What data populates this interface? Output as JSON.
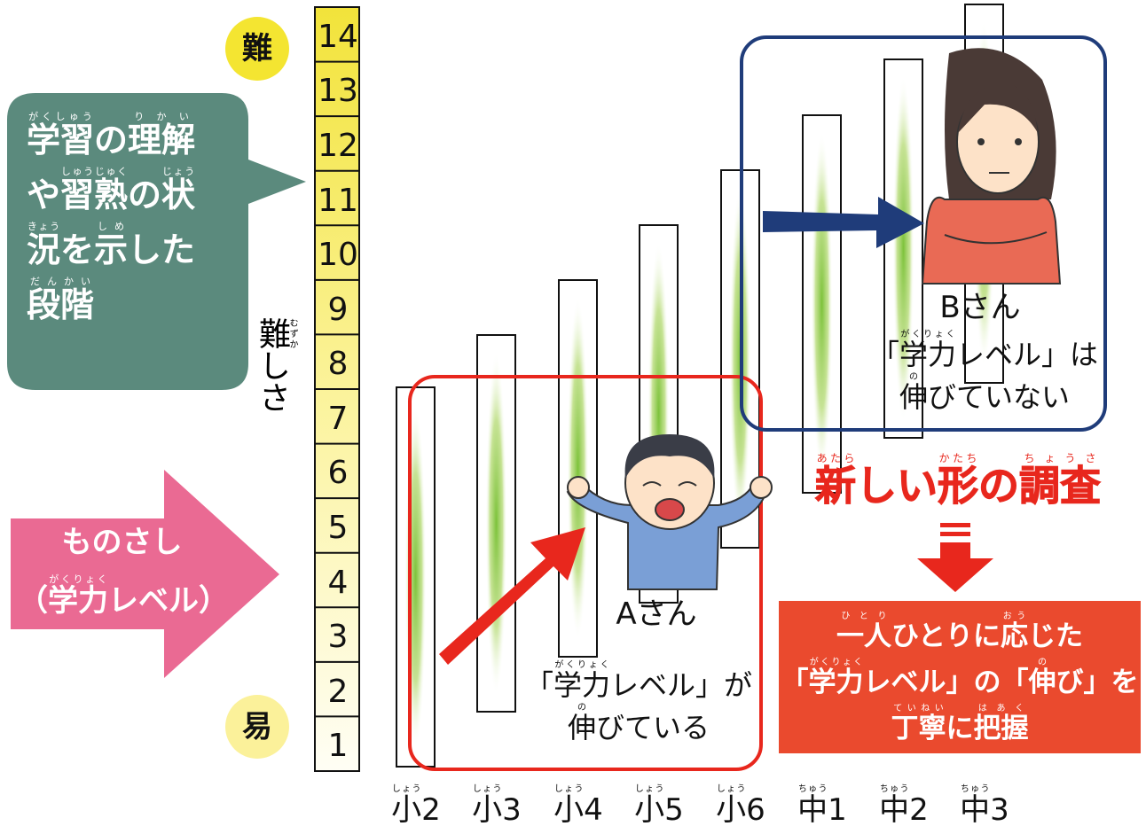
{
  "scale": {
    "hard": "難",
    "easy": "易",
    "levels": [
      1,
      2,
      3,
      4,
      5,
      6,
      7,
      8,
      9,
      10,
      11,
      12,
      13,
      14
    ],
    "label": [
      {
        "base": "難",
        "ruby": "むずか"
      },
      "しさ"
    ]
  },
  "callout": {
    "lines": [
      [
        {
          "base": "学習",
          "ruby": "がくしゅう"
        },
        "の",
        {
          "base": "理解",
          "ruby": "りかい"
        }
      ],
      [
        "や",
        {
          "base": "習熟",
          "ruby": "しゅうじゅく"
        },
        "の",
        {
          "base": "状",
          "ruby": "じょう"
        }
      ],
      [
        {
          "base": "況",
          "ruby": "きょう"
        },
        "を",
        {
          "base": "示",
          "ruby": "しめ"
        },
        "した"
      ],
      [
        {
          "base": "段階",
          "ruby": "だんかい"
        }
      ]
    ]
  },
  "ruler": {
    "lines": [
      [
        "ものさし"
      ],
      [
        "（",
        {
          "base": "学力",
          "ruby": "がくりょく"
        },
        "レベル）"
      ]
    ]
  },
  "grades": [
    [
      {
        "base": "小",
        "ruby": "しょう"
      },
      "2"
    ],
    [
      {
        "base": "小",
        "ruby": "しょう"
      },
      "3"
    ],
    [
      {
        "base": "小",
        "ruby": "しょう"
      },
      "4"
    ],
    [
      {
        "base": "小",
        "ruby": "しょう"
      },
      "5"
    ],
    [
      {
        "base": "小",
        "ruby": "しょう"
      },
      "6"
    ],
    [
      {
        "base": "中",
        "ruby": "ちゅう"
      },
      "1"
    ],
    [
      {
        "base": "中",
        "ruby": "ちゅう"
      },
      "2"
    ],
    [
      {
        "base": "中",
        "ruby": "ちゅう"
      },
      "3"
    ]
  ],
  "student_a": {
    "name": "Aさん",
    "lines": [
      [
        "「",
        {
          "base": "学力",
          "ruby": "がくりょく"
        },
        "レベル」が"
      ],
      [
        {
          "base": "伸",
          "ruby": "の"
        },
        "びている"
      ]
    ]
  },
  "student_b": {
    "name": "Bさん",
    "lines": [
      [
        "「",
        {
          "base": "学力",
          "ruby": "がくりょく"
        },
        "レベル」は"
      ],
      [
        {
          "base": "伸",
          "ruby": "の"
        },
        "びていない"
      ]
    ]
  },
  "headline": [
    {
      "base": "新",
      "ruby": "あたら"
    },
    "しい",
    {
      "base": "形",
      "ruby": "かたち"
    },
    "の",
    {
      "base": "調査",
      "ruby": "ちょうさ"
    }
  ],
  "result": {
    "lines": [
      [
        {
          "base": "一人",
          "ruby": "ひとり"
        },
        "ひとりに",
        {
          "base": "応",
          "ruby": "おう"
        },
        "じた"
      ],
      [
        "「",
        {
          "base": "学力",
          "ruby": "がくりょく"
        },
        "レベル」の「",
        {
          "base": "伸",
          "ruby": "の"
        },
        "び」を"
      ],
      [
        {
          "base": "丁寧",
          "ruby": "ていねい"
        },
        "に",
        {
          "base": "把握",
          "ruby": "はあく"
        }
      ]
    ]
  }
}
